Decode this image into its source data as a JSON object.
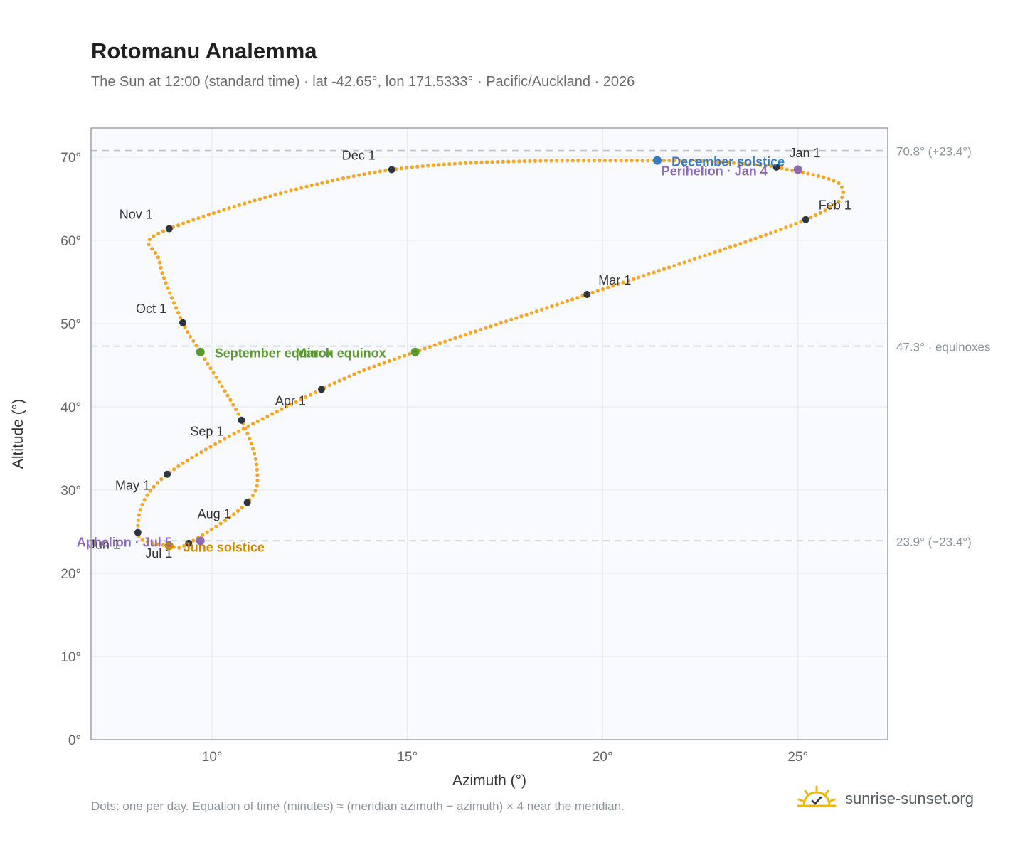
{
  "header": {
    "title": "Rotomanu Analemma",
    "subtitle": "The Sun at 12:00 (standard time) · lat -42.65°, lon 171.5333° · Pacific/Auckland · 2026"
  },
  "footer": {
    "note": "Dots: one per day. Equation of time (minutes) ≈ (meridian azimuth − azimuth) × 4 near the meridian.",
    "brand": "sunrise-sunset.org",
    "brand_icon": "sun-check-icon"
  },
  "colors": {
    "path": "#f5a623",
    "marker": "#2d3540",
    "equinox": "#5a9a2e",
    "december_solstice": "#3a7bbd",
    "june_solstice": "#cc8a00",
    "apsis": "#8e6bb8",
    "refline": "#b8c0c9",
    "plot_bg": "#f8fafd",
    "grid": "#e6eaef",
    "frame": "#9aa3ae"
  },
  "chart_data": {
    "type": "scatter",
    "xlabel": "Azimuth (°)",
    "ylabel": "Altitude (°)",
    "xlim": [
      6.9,
      27.3
    ],
    "ylim": [
      0,
      73.5
    ],
    "xticks": [
      10,
      15,
      20,
      25
    ],
    "xtick_labels": [
      "10°",
      "15°",
      "20°",
      "25°"
    ],
    "yticks": [
      0,
      10,
      20,
      30,
      40,
      50,
      60,
      70
    ],
    "ytick_labels": [
      "0°",
      "10°",
      "20°",
      "30°",
      "40°",
      "50°",
      "60°",
      "70°"
    ],
    "grid": true,
    "series": [
      {
        "kind": "daily-path",
        "points_per_day": 1,
        "keypoints": [
          {
            "date": "Jan 1",
            "x": 24.45,
            "y": 68.8
          },
          {
            "date": "Jan 20",
            "x": 26.1,
            "y": 66.6
          },
          {
            "date": "Feb 1",
            "x": 25.2,
            "y": 62.5
          },
          {
            "date": "Mar 1",
            "x": 19.6,
            "y": 53.5
          },
          {
            "date": "Mar 20",
            "x": 15.2,
            "y": 46.6
          },
          {
            "date": "Apr 1",
            "x": 12.8,
            "y": 42.1
          },
          {
            "date": "May 1",
            "x": 8.85,
            "y": 31.9
          },
          {
            "date": "Jun 1",
            "x": 8.1,
            "y": 24.9
          },
          {
            "date": "Jun 21",
            "x": 8.9,
            "y": 23.3
          },
          {
            "date": "Jul 1",
            "x": 9.4,
            "y": 23.6
          },
          {
            "date": "Aug 1",
            "x": 10.9,
            "y": 28.5
          },
          {
            "date": "Aug 15",
            "x": 11.15,
            "y": 32.5
          },
          {
            "date": "Sep 1",
            "x": 10.75,
            "y": 38.4
          },
          {
            "date": "Sep 23",
            "x": 9.7,
            "y": 46.6
          },
          {
            "date": "Oct 1",
            "x": 9.25,
            "y": 50.1
          },
          {
            "date": "Oct 20",
            "x": 8.65,
            "y": 57.5
          },
          {
            "date": "Nov 1",
            "x": 8.9,
            "y": 61.4
          },
          {
            "date": "Dec 1",
            "x": 14.6,
            "y": 68.5
          },
          {
            "date": "Dec 21",
            "x": 21.4,
            "y": 69.6
          },
          {
            "date": "Dec 31",
            "x": 24.4,
            "y": 68.9
          }
        ]
      }
    ],
    "month_markers": [
      {
        "label": "Jan 1",
        "x": 24.45,
        "y": 68.8,
        "dx": 18,
        "dy": -14,
        "anchor": "start"
      },
      {
        "label": "Feb 1",
        "x": 25.2,
        "y": 62.5,
        "dx": 18,
        "dy": -14,
        "anchor": "start"
      },
      {
        "label": "Mar 1",
        "x": 19.6,
        "y": 53.5,
        "dx": 16,
        "dy": -14,
        "anchor": "start"
      },
      {
        "label": "Apr 1",
        "x": 12.8,
        "y": 42.1,
        "dx": -65,
        "dy": 22,
        "anchor": "start"
      },
      {
        "label": "May 1",
        "x": 8.85,
        "y": 31.9,
        "dx": -73,
        "dy": 22,
        "anchor": "start"
      },
      {
        "label": "Jun 1",
        "x": 8.1,
        "y": 24.9,
        "dx": -69,
        "dy": 23,
        "anchor": "start"
      },
      {
        "label": "Jul 1",
        "x": 9.4,
        "y": 23.6,
        "dx": -61,
        "dy": 20,
        "anchor": "start"
      },
      {
        "label": "Aug 1",
        "x": 10.9,
        "y": 28.5,
        "dx": -70,
        "dy": 22,
        "anchor": "start"
      },
      {
        "label": "Sep 1",
        "x": 10.75,
        "y": 38.4,
        "dx": -72,
        "dy": 22,
        "anchor": "start"
      },
      {
        "label": "Oct 1",
        "x": 9.25,
        "y": 50.1,
        "dx": -66,
        "dy": -14,
        "anchor": "start"
      },
      {
        "label": "Nov 1",
        "x": 8.9,
        "y": 61.4,
        "dx": -70,
        "dy": -14,
        "anchor": "start"
      },
      {
        "label": "Dec 1",
        "x": 14.6,
        "y": 68.5,
        "dx": -70,
        "dy": -14,
        "anchor": "start"
      }
    ],
    "events": [
      {
        "label": "March equinox",
        "x": 15.2,
        "y": 46.6,
        "color": "#5a9a2e",
        "dx": -168,
        "dy": 8,
        "anchor": "start"
      },
      {
        "label": "September equinox",
        "x": 9.7,
        "y": 46.6,
        "color": "#5a9a2e",
        "dx": 20,
        "dy": 8,
        "anchor": "start"
      },
      {
        "label": "December solstice",
        "x": 21.4,
        "y": 69.6,
        "color": "#3a7bbd",
        "dx": 20,
        "dy": 8,
        "anchor": "start"
      },
      {
        "label": "June solstice",
        "x": 8.9,
        "y": 23.3,
        "color": "#cc8a00",
        "dx": 20,
        "dy": 8,
        "anchor": "start"
      },
      {
        "label": "Perihelion · Jan 4",
        "x": 25.0,
        "y": 68.5,
        "color": "#8e6bb8",
        "dx": -192,
        "dy": 8,
        "anchor": "start"
      },
      {
        "label": "Aphelion · Jul 5",
        "x": 9.7,
        "y": 23.9,
        "color": "#8e6bb8",
        "dx": -174,
        "dy": 8,
        "anchor": "start"
      }
    ],
    "reference_lines": [
      {
        "y": 70.8,
        "label": "70.8° (+23.4°)"
      },
      {
        "y": 47.3,
        "label": "47.3° · equinoxes"
      },
      {
        "y": 23.9,
        "label": "23.9° (−23.4°)"
      }
    ]
  }
}
